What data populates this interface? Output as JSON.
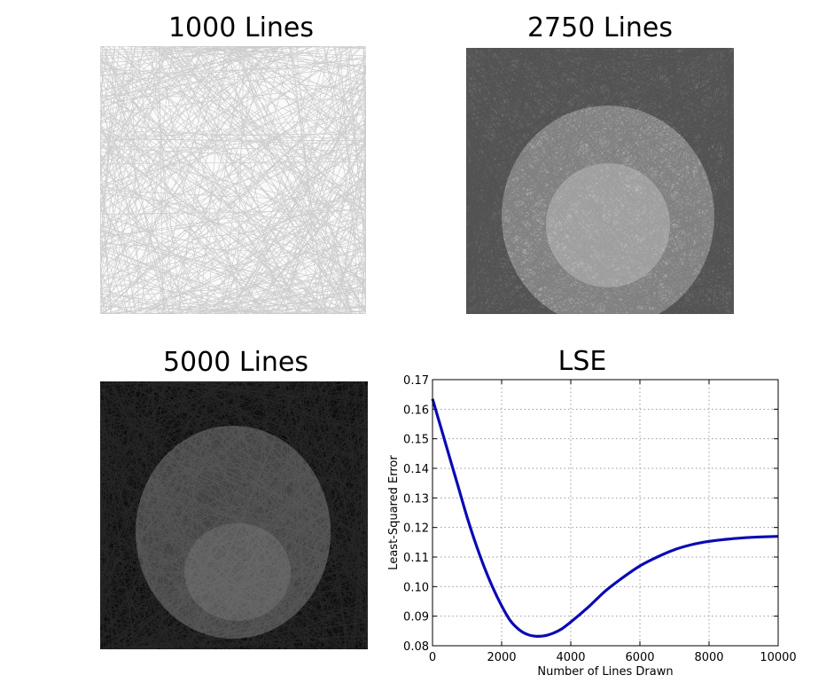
{
  "panels": [
    {
      "title": "1000 Lines"
    },
    {
      "title": "2750 Lines"
    },
    {
      "title": "5000 Lines"
    }
  ],
  "chart_data": {
    "type": "line",
    "title": "LSE",
    "xlabel": "Number of Lines Drawn",
    "ylabel": "Least-Squared Error",
    "xlim": [
      0,
      10000
    ],
    "ylim": [
      0.08,
      0.17
    ],
    "grid": true,
    "x_ticks": [
      0,
      2000,
      4000,
      6000,
      8000,
      10000
    ],
    "y_ticks": [
      0.08,
      0.09,
      0.1,
      0.11,
      0.12,
      0.13,
      0.14,
      0.15,
      0.16,
      0.17
    ],
    "x_tick_labels": [
      "0",
      "2000",
      "4000",
      "6000",
      "8000",
      "10000"
    ],
    "y_tick_labels": [
      "0.08",
      "0.09",
      "0.10",
      "0.11",
      "0.12",
      "0.13",
      "0.14",
      "0.15",
      "0.16",
      "0.17"
    ],
    "series": [
      {
        "color": "#0a0ab4",
        "x": [
          0,
          250,
          500,
          750,
          1000,
          1250,
          1500,
          1750,
          2000,
          2250,
          2500,
          2750,
          3000,
          3250,
          3500,
          3750,
          4000,
          4500,
          5000,
          5500,
          6000,
          6500,
          7000,
          7500,
          8000,
          8500,
          9000,
          9500,
          10000
        ],
        "y": [
          0.1635,
          0.1535,
          0.1435,
          0.1335,
          0.1235,
          0.1145,
          0.1065,
          0.0995,
          0.0935,
          0.0885,
          0.0855,
          0.0838,
          0.0832,
          0.0834,
          0.0843,
          0.0858,
          0.088,
          0.093,
          0.0985,
          0.103,
          0.107,
          0.11,
          0.1125,
          0.1142,
          0.1153,
          0.116,
          0.1165,
          0.1168,
          0.117
        ]
      }
    ]
  }
}
